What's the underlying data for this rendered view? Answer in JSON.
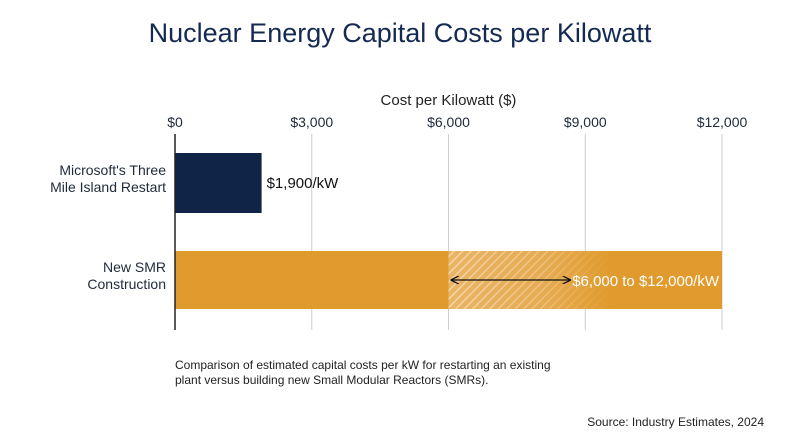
{
  "chart_data": {
    "type": "bar",
    "orientation": "horizontal",
    "title": "Nuclear Energy Capital Costs per Kilowatt",
    "xlabel": "Cost per Kilowatt ($)",
    "xlim": [
      0,
      12000
    ],
    "x_ticks": [
      0,
      3000,
      6000,
      9000,
      12000
    ],
    "x_tick_labels": [
      "$0",
      "$3,000",
      "$6,000",
      "$9,000",
      "$12,000"
    ],
    "grid": true,
    "categories": [
      [
        "Microsoft's Three",
        "Mile Island Restart"
      ],
      [
        "New SMR",
        "Construction"
      ]
    ],
    "bars": [
      {
        "low": 0,
        "high": 1900,
        "color": "#0f2447",
        "label": "$1,900/kW"
      },
      {
        "low": 0,
        "high": 12000,
        "range_low": 6000,
        "range_high": 12000,
        "color": "#e09a2d",
        "label": "$6,000 to $12,000/kW"
      }
    ]
  },
  "note": "Comparison of estimated capital costs per kW for restarting an existing plant versus building new Small Modular Reactors (SMRs).",
  "source": "Source: Industry Estimates, 2024"
}
